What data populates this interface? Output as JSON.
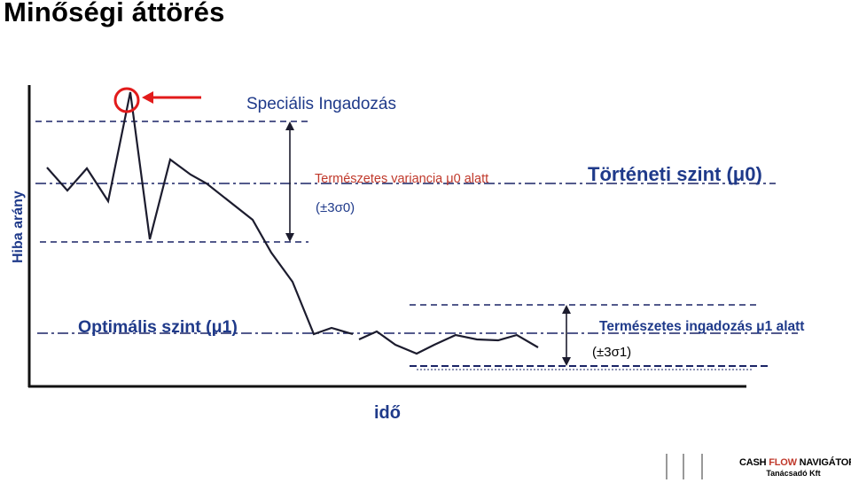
{
  "title": "Minőségi áttörés",
  "axes": {
    "y_label": "Hiba arány",
    "x_label": "idő"
  },
  "annotations": {
    "special_variation": "Speciális Ingadozás",
    "natural_variance_mu0": "Természetes variancia μ0 alatt",
    "sigma0": "(±3σ0)",
    "historical_level": "Történeti szint (μ0)",
    "optimal_level": "Optimális szint (μ1)",
    "natural_variation_mu1": "Természetes ingadozás μ1 alatt",
    "sigma1": "(±3σ1)"
  },
  "logo": {
    "part1": "CASH ",
    "part2": "FLOW",
    "part3": " NAVIGÁTOR",
    "subtitle": "Tanácsadó Kft"
  },
  "colors": {
    "text_blue": "#1f3a8a",
    "accent_red": "#e21b1b",
    "line_dark": "#1c1c2e",
    "dash_navy": "#1a2466"
  }
}
